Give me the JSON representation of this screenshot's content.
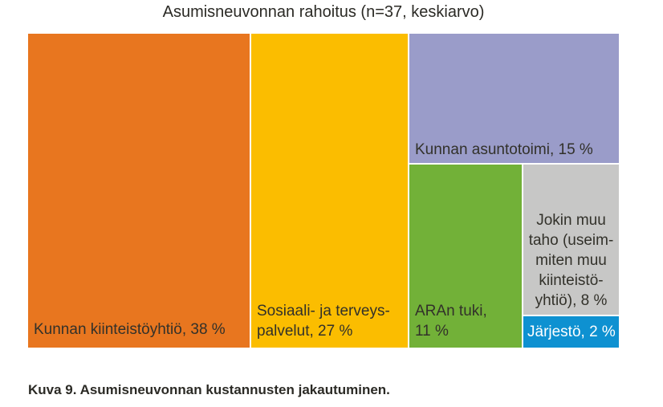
{
  "title": "Asumisneuvonnan rahoitus (n=37, keskiarvo)",
  "caption": "Kuva 9. Asumisneuvonnan kustannusten jakautuminen.",
  "chart_data": {
    "type": "treemap",
    "title": "Asumisneuvonnan rahoitus (n=37, keskiarvo)",
    "n": 37,
    "statistic": "keskiarvo",
    "unit": "%",
    "legend": "none",
    "label_position": "inside-tiles",
    "series": [
      {
        "name": "Kunnan kiinteistöyhtiö",
        "value": 38,
        "color": "#E8761F",
        "text_color": "#32312A",
        "display_label": "Kunnan kiinteistöyhtiö, 38 %"
      },
      {
        "name": "Sosiaali- ja terveyspalvelut",
        "value": 27,
        "color": "#FBBD00",
        "text_color": "#32312A",
        "display_label": "Sosiaali- ja terveys-\npalvelut, 27 %"
      },
      {
        "name": "Kunnan asuntotoimi",
        "value": 15,
        "color": "#9A9CC9",
        "text_color": "#32312A",
        "display_label": "Kunnan asuntotoimi, 15 %"
      },
      {
        "name": "ARAn tuki",
        "value": 11,
        "color": "#72B138",
        "text_color": "#32312A",
        "display_label": "ARAn tuki,\n11 %"
      },
      {
        "name": "Jokin muu taho (useimmiten muu kiinteistöyhtiö)",
        "value": 8,
        "color": "#C7C7C6",
        "text_color": "#32312A",
        "display_label": "Jokin muu\ntaho (useim-\nmiten muu\nkiinteistö-\nyhtiö), 8 %"
      },
      {
        "name": "Järjestö",
        "value": 2,
        "color": "#0E91D1",
        "text_color": "#FFFFFF",
        "display_label": "Järjestö, 2 %"
      }
    ]
  }
}
